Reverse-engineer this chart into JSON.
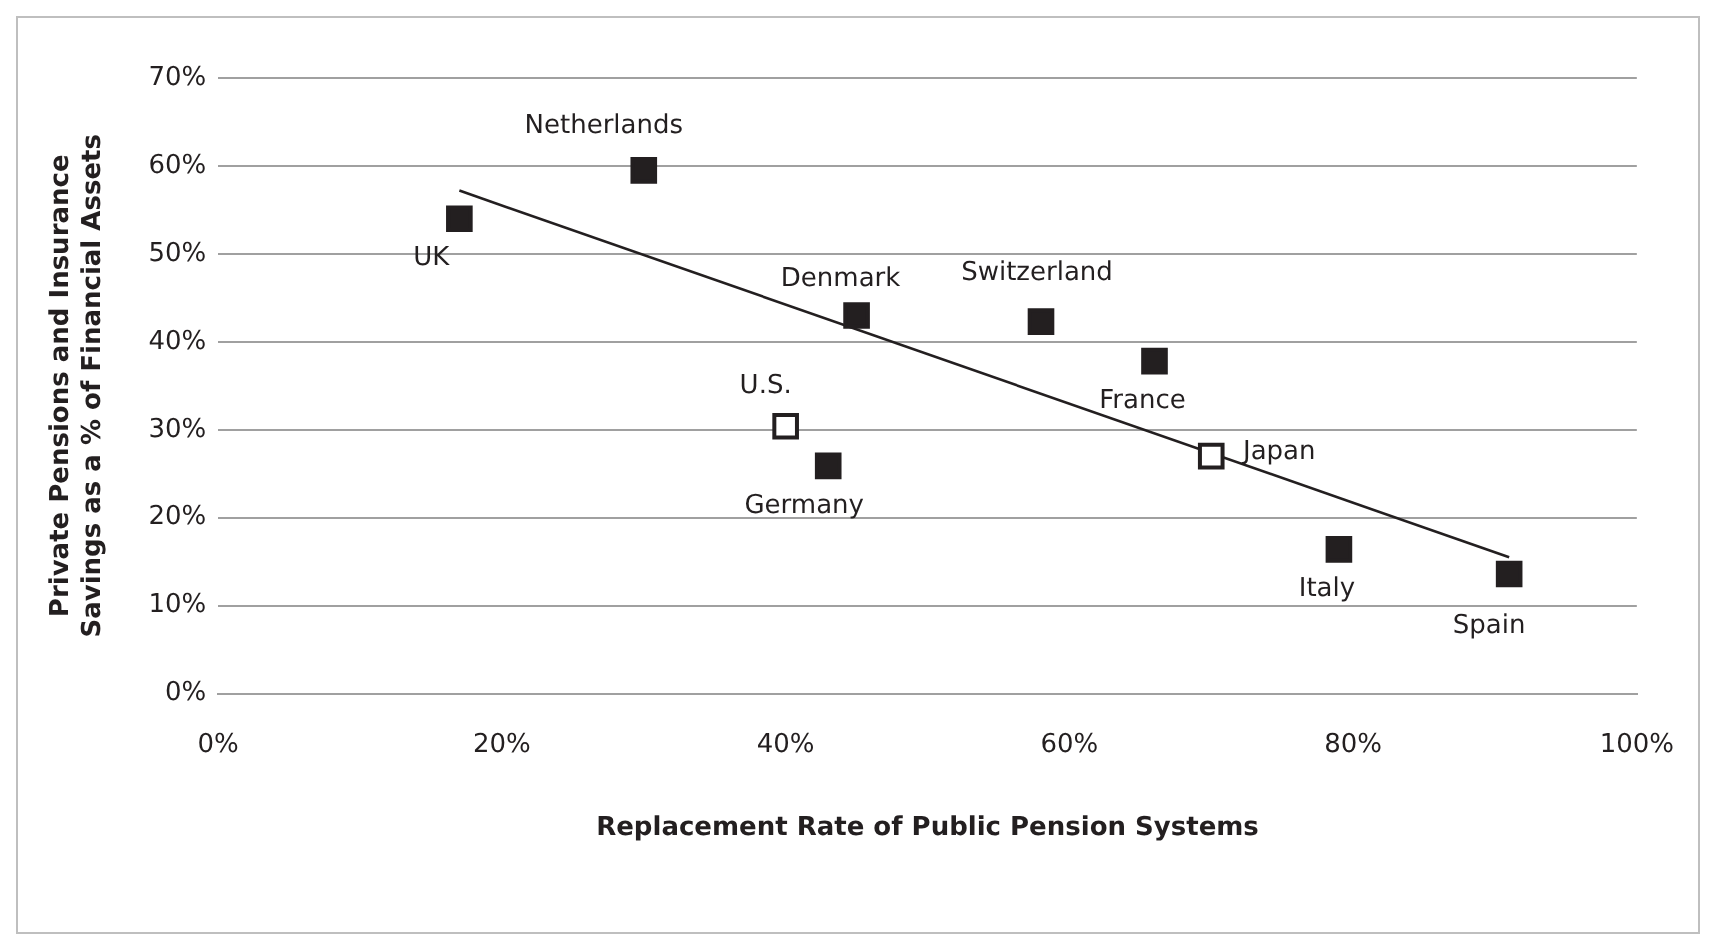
{
  "chart_data": {
    "type": "scatter",
    "xlabel": "Replacement Rate of Public Pension Systems",
    "ylabel": "Private Pensions and Insurance Savings as a % of Financial Assets",
    "xlim": [
      0,
      100
    ],
    "xticks": [
      {
        "value": 0,
        "label": "0%"
      },
      {
        "value": 20,
        "label": "20%"
      },
      {
        "value": 40,
        "label": "40%"
      },
      {
        "value": 60,
        "label": "60%"
      },
      {
        "value": 80,
        "label": "80%"
      },
      {
        "value": 100,
        "label": "100%"
      }
    ],
    "ylim": [
      0,
      70
    ],
    "yticks": [
      {
        "value": 0,
        "label": "0%"
      },
      {
        "value": 10,
        "label": "10%"
      },
      {
        "value": 20,
        "label": "20%"
      },
      {
        "value": 30,
        "label": "30%"
      },
      {
        "value": 40,
        "label": "40%"
      },
      {
        "value": 50,
        "label": "50%"
      },
      {
        "value": 60,
        "label": "60%"
      },
      {
        "value": 70,
        "label": "70%"
      }
    ],
    "grid": "y",
    "legend": false,
    "series": [
      {
        "marker": "square",
        "color": "#231f20",
        "x": [
          17,
          30,
          45,
          58,
          66,
          43,
          79,
          91
        ],
        "values": [
          54,
          59.5,
          43,
          42.3,
          37.8,
          25.9,
          16.4,
          13.6
        ]
      },
      {
        "marker": "square",
        "color": "#ffffff",
        "x": [
          40,
          70
        ],
        "values": [
          30.4,
          27
        ]
      },
      {
        "type": "line",
        "marker": "none",
        "color": "#231f20",
        "x": [
          17,
          91
        ],
        "values": [
          57.2,
          15.5
        ]
      }
    ],
    "annotations": [
      {
        "text": "UK",
        "x": 17,
        "y": 54
      },
      {
        "text": "Netherlands",
        "x": 30,
        "y": 59.5
      },
      {
        "text": "Denmark",
        "x": 45,
        "y": 43
      },
      {
        "text": "Switzerland",
        "x": 58,
        "y": 42.3
      },
      {
        "text": "France",
        "x": 66,
        "y": 37.8
      },
      {
        "text": "U.S.",
        "x": 40,
        "y": 30.4
      },
      {
        "text": "Germany",
        "x": 43,
        "y": 25.9
      },
      {
        "text": "Japan",
        "x": 70,
        "y": 27
      },
      {
        "text": "Italy",
        "x": 79,
        "y": 16.4
      },
      {
        "text": "Spain",
        "x": 91,
        "y": 13.6
      }
    ]
  }
}
